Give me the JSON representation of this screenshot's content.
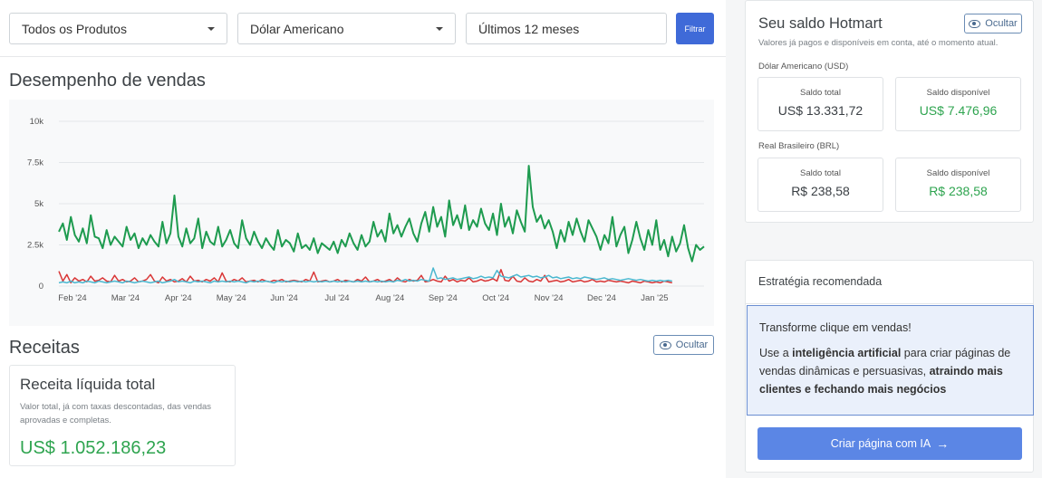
{
  "filters": {
    "product": "Todos os Produtos",
    "currency": "Dólar Americano",
    "period": "Últimos 12 meses",
    "filter_button": "Filtrar"
  },
  "performance": {
    "title": "Desempenho de vendas"
  },
  "chart_data": {
    "type": "line",
    "x_ticks": [
      "Feb '24",
      "Mar '24",
      "Apr '24",
      "May '24",
      "Jun '24",
      "Jul '24",
      "Aug '24",
      "Sep '24",
      "Oct '24",
      "Nov '24",
      "Dec '24",
      "Jan '25"
    ],
    "y_ticks": [
      "0",
      "2.5k",
      "5k",
      "7.5k",
      "10k"
    ],
    "ylim": [
      0,
      10000
    ],
    "grid": true,
    "series": [
      {
        "color": "#1e9b4f",
        "values": [
          3300,
          3800,
          2800,
          4200,
          3100,
          2700,
          3500,
          2600,
          4300,
          3000,
          2900,
          2300,
          3400,
          2500,
          3000,
          2700,
          2400,
          3600,
          2800,
          3200,
          2300,
          2900,
          2500,
          3100,
          2700,
          2400,
          3900,
          2600,
          3200,
          5500,
          3000,
          2400,
          3500,
          2600,
          2900,
          4100,
          2300,
          3300,
          2700,
          2500,
          3600,
          2400,
          2800,
          3400,
          2600,
          2300,
          4000,
          2900,
          2500,
          3300,
          2700,
          2300,
          2900,
          2500,
          2200,
          3400,
          2400,
          2800,
          2600,
          2100,
          3200,
          2300,
          2500,
          2200,
          2900,
          2000,
          2600,
          2400,
          2200,
          2700,
          2000,
          2800,
          2400,
          3200,
          2600,
          2200,
          3100,
          2400,
          2700,
          3900,
          3000,
          3400,
          2700,
          4400,
          3200,
          3700,
          3000,
          3600,
          4100,
          3200,
          2700,
          3800,
          4500,
          3300,
          4800,
          3600,
          4200,
          3000,
          5200,
          3700,
          4300,
          3500,
          4900,
          3400,
          4000,
          3600,
          4700,
          3800,
          3400,
          4400,
          3100,
          5000,
          3600,
          4200,
          3200,
          4600,
          3900,
          3300,
          7300,
          4800,
          3900,
          4300,
          3500,
          4000,
          3300,
          2300,
          3400,
          2700,
          3900,
          3100,
          4100,
          3300,
          2700,
          4000,
          3500,
          3000,
          2200,
          3100,
          2600,
          4200,
          2400,
          3100,
          3600,
          2000,
          2800,
          3900,
          2900,
          2200,
          3400,
          2500,
          4000,
          2200,
          2800,
          1800,
          3000,
          2100,
          2600,
          3700,
          2300,
          1500,
          2500,
          2200,
          2400
        ]
      },
      {
        "color": "#d93636",
        "values": [
          900,
          300,
          700,
          200,
          500,
          300,
          400,
          250,
          600,
          300,
          350,
          500,
          300,
          250,
          650,
          300,
          400,
          250,
          300,
          500,
          250,
          300,
          400,
          700,
          300,
          200,
          550,
          300,
          400,
          250,
          300,
          450,
          250,
          600,
          300,
          350,
          250,
          400,
          300,
          500,
          250,
          800,
          300,
          250,
          400,
          300,
          500,
          250,
          300,
          350,
          250,
          400,
          300,
          250,
          350,
          300,
          400,
          250,
          300,
          350,
          300,
          250,
          400,
          300,
          850,
          250,
          300,
          350,
          250,
          300,
          400,
          250,
          350,
          300,
          250,
          400,
          300,
          550,
          250,
          300,
          400,
          250,
          300,
          400,
          250,
          500,
          300,
          250,
          400,
          300,
          350,
          650,
          250,
          300,
          400,
          300,
          250,
          600,
          300,
          400,
          250,
          350,
          300,
          500,
          250,
          300,
          400,
          300,
          350,
          450,
          300,
          1000,
          350,
          300,
          600,
          300,
          250,
          500,
          300,
          250,
          400,
          300,
          650,
          250,
          300,
          350,
          250,
          300,
          400,
          250,
          300,
          350,
          250,
          300,
          400,
          250,
          300,
          250,
          350,
          300,
          250,
          300,
          250,
          200,
          300,
          250,
          200,
          300,
          250,
          200,
          250,
          200,
          300,
          250,
          200
        ]
      },
      {
        "color": "#4bb8d0",
        "values": [
          200,
          250,
          200,
          300,
          200,
          250,
          200,
          300,
          250,
          200,
          300,
          250,
          200,
          250,
          300,
          250,
          200,
          300,
          250,
          200,
          250,
          300,
          250,
          200,
          250,
          300,
          200,
          250,
          300,
          400,
          250,
          300,
          250,
          200,
          300,
          250,
          300,
          250,
          200,
          300,
          250,
          300,
          250,
          300,
          250,
          300,
          250,
          200,
          300,
          250,
          300,
          250,
          300,
          250,
          200,
          300,
          250,
          300,
          250,
          300,
          250,
          300,
          250,
          300,
          250,
          300,
          250,
          300,
          250,
          300,
          250,
          300,
          250,
          300,
          250,
          300,
          250,
          300,
          250,
          300,
          250,
          300,
          250,
          300,
          250,
          350,
          300,
          400,
          300,
          350,
          300,
          400,
          350,
          300,
          1100,
          450,
          500,
          400,
          450,
          500,
          400,
          450,
          500,
          550,
          450,
          500,
          600,
          500,
          550,
          500,
          950,
          600,
          550,
          500,
          600,
          700,
          550,
          600,
          650,
          550,
          600,
          500,
          550,
          650,
          500,
          550,
          450,
          500,
          550,
          450,
          500,
          450,
          550,
          500,
          450,
          400,
          450,
          500,
          400,
          450,
          400,
          350,
          400,
          450,
          400,
          350,
          400,
          350,
          300,
          350,
          300,
          350,
          300,
          350,
          300
        ]
      }
    ]
  },
  "revenue": {
    "title": "Receitas",
    "hide_label": "Ocultar",
    "card_title": "Receita líquida total",
    "card_desc": "Valor total, já com taxas descontadas, das vendas aprovadas e completas.",
    "card_value": "US$ 1.052.186,23"
  },
  "balance": {
    "title": "Seu saldo Hotmart",
    "hide_label": "Ocultar",
    "subtitle": "Valores já pagos e disponíveis em conta, até o momento atual.",
    "usd": {
      "label": "Dólar Americano (USD)",
      "total_label": "Saldo total",
      "total_value": "US$ 13.331,72",
      "available_label": "Saldo disponível",
      "available_value": "US$ 7.476,96"
    },
    "brl": {
      "label": "Real Brasileiro (BRL)",
      "total_label": "Saldo total",
      "total_value": "R$ 238,58",
      "available_label": "Saldo disponível",
      "available_value": "R$ 238,58"
    }
  },
  "strategy": {
    "header": "Estratégia recomendada",
    "line1": "Transforme clique em vendas!",
    "text_a": "Use a ",
    "bold_a": "inteligência artificial",
    "text_b": " para criar páginas de vendas dinâmicas e persuasivas, ",
    "bold_b": "atraindo mais clientes e fechando mais negócios",
    "button": "Criar página com IA",
    "button_icon": "arrow-right-icon"
  }
}
